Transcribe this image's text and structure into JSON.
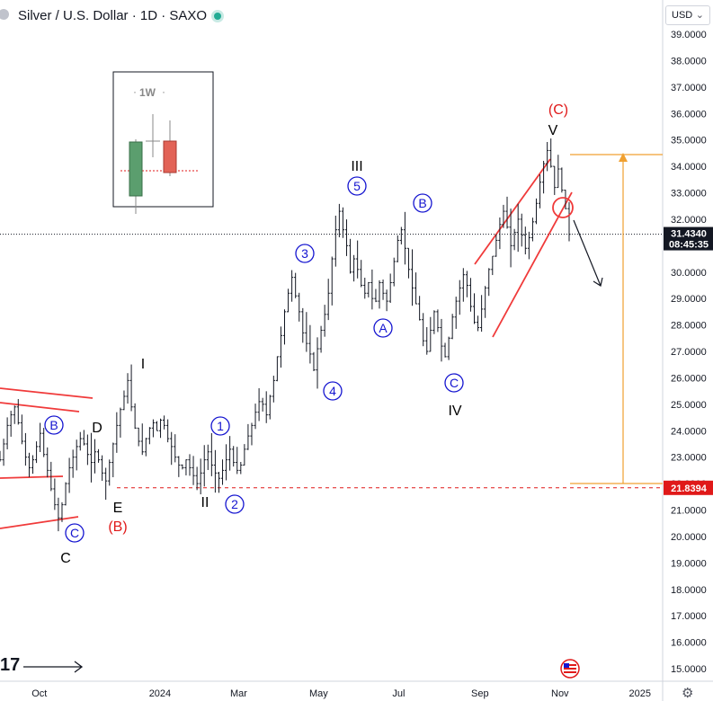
{
  "header": {
    "title": "Silver / U.S. Dollar · 1D · SAXO",
    "currency": "USD"
  },
  "inset": {
    "label": "1W"
  },
  "colors": {
    "wave_red": "#e01919",
    "circle_blue": "#1515d0",
    "orange": "#f0a030",
    "price_tag": "#131722",
    "support_tag": "#e01919",
    "bull_candle": "#5b9e6e",
    "bear_candle": "#e26357"
  },
  "chart_data": {
    "type": "line",
    "title": "Silver / U.S. Dollar · 1D · SAXO",
    "xlabel": "",
    "ylabel": "",
    "ylim": [
      14.6,
      39.6
    ],
    "grid": false,
    "yticks": [
      "39.0000",
      "38.0000",
      "37.0000",
      "36.0000",
      "35.0000",
      "34.0000",
      "33.0000",
      "32.0000",
      "31.0000",
      "30.0000",
      "29.0000",
      "28.0000",
      "27.0000",
      "26.0000",
      "25.0000",
      "24.0000",
      "23.0000",
      "22.0000",
      "21.0000",
      "20.0000",
      "19.0000",
      "18.0000",
      "17.0000",
      "16.0000",
      "15.0000"
    ],
    "xticks": [
      "Oct",
      "2024",
      "Mar",
      "May",
      "Jul",
      "Sep",
      "Nov",
      "2025"
    ],
    "series": [
      {
        "values": [
          22.9,
          23.5,
          24.2,
          24.6,
          24.9,
          24.3,
          23.6,
          23.0,
          22.6,
          22.9,
          23.4,
          23.9,
          23.1,
          22.5,
          21.8,
          21.2,
          20.7,
          21.2,
          22.0,
          22.6,
          23.0,
          23.4,
          23.7,
          23.5,
          23.1,
          22.8,
          23.2,
          22.9,
          22.4,
          22.1,
          22.8,
          23.5,
          24.2,
          24.8,
          25.3,
          25.9,
          24.9,
          24.1,
          23.6,
          23.2,
          23.7,
          24.1,
          24.3,
          24.0,
          24.4,
          24.2,
          23.7,
          23.4,
          23.0,
          22.7,
          22.6,
          22.9,
          22.6,
          22.3,
          22.0,
          22.4,
          22.9,
          23.2,
          22.7,
          22.4,
          22.2,
          22.5,
          22.9,
          23.3,
          22.8,
          22.5,
          22.7,
          23.3,
          23.8,
          24.2,
          24.7,
          25.1,
          25.0,
          24.6,
          25.3,
          25.9,
          26.8,
          27.6,
          28.5,
          29.2,
          29.8,
          29.1,
          28.5,
          27.7,
          27.3,
          26.9,
          26.3,
          27.1,
          27.8,
          28.4,
          29.2,
          30.5,
          31.6,
          32.3,
          31.6,
          31.0,
          30.0,
          30.5,
          30.1,
          29.5,
          29.2,
          29.6,
          29.0,
          28.9,
          29.6,
          29.2,
          28.9,
          29.6,
          30.4,
          31.2,
          31.6,
          30.9,
          30.1,
          29.4,
          28.8,
          28.2,
          27.4,
          27.0,
          27.8,
          28.5,
          27.9,
          27.2,
          26.8,
          27.5,
          28.3,
          28.9,
          29.4,
          29.9,
          29.5,
          28.7,
          28.1,
          27.9,
          28.6,
          29.4,
          30.1,
          30.6,
          31.2,
          31.8,
          32.3,
          31.7,
          31.0,
          31.5,
          32.0,
          31.4,
          30.9,
          31.3,
          31.9,
          32.6,
          33.4,
          34.1,
          34.6,
          34.0,
          33.2,
          33.9,
          33.1,
          32.4,
          31.43
        ],
        "x_start": "2023-09-01",
        "x_end": "2024-11-08"
      }
    ],
    "levels": [
      {
        "value": 31.434,
        "label": "31.4340",
        "sub": "08:45:35"
      },
      {
        "value": 21.8394,
        "label": "21.8394"
      }
    ],
    "wave_labels": [
      {
        "text": "(C)",
        "style": "red"
      },
      {
        "text": "V",
        "style": "black"
      },
      {
        "text": "III",
        "style": "black"
      },
      {
        "text": "IV",
        "style": "black"
      },
      {
        "text": "I",
        "style": "black"
      },
      {
        "text": "II",
        "style": "black"
      },
      {
        "text": "D",
        "style": "black"
      },
      {
        "text": "E",
        "style": "black"
      },
      {
        "text": "C",
        "style": "black"
      },
      {
        "text": "(B)",
        "style": "red"
      },
      {
        "text": "5",
        "style": "circle"
      },
      {
        "text": "3",
        "style": "circle"
      },
      {
        "text": "4",
        "style": "circle"
      },
      {
        "text": "1",
        "style": "circle"
      },
      {
        "text": "2",
        "style": "circle"
      },
      {
        "text": "A",
        "style": "circle"
      },
      {
        "text": "B",
        "style": "circle"
      },
      {
        "text": "C",
        "style": "circle"
      },
      {
        "text": "B",
        "style": "circle"
      },
      {
        "text": "C",
        "style": "circle"
      }
    ]
  }
}
